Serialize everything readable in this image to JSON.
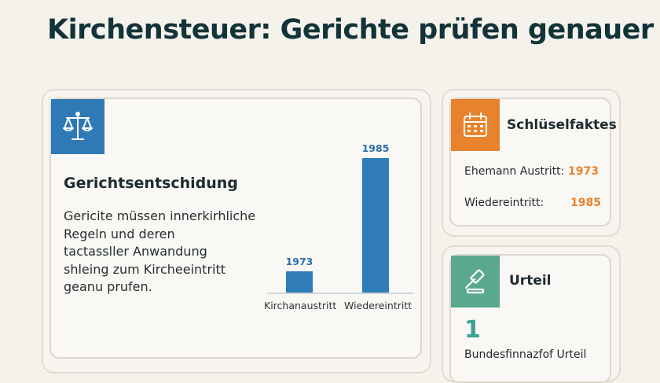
{
  "header": {
    "title": "Kirchensteuer: Gerichte prüfen genauer"
  },
  "decision_card": {
    "icon": "scale-icon",
    "heading": "Gerichtsentschidung",
    "text_lines": [
      "Gericite müssen innerkirhliche",
      "Regeln und deren",
      "tactassller Anwandung",
      "shleing zum Kircheeintritt",
      "geanu prufen."
    ]
  },
  "chart_data": {
    "type": "bar",
    "categories": [
      "Kirchanaustritt",
      "Wiedereintritt"
    ],
    "values": [
      1973,
      1985
    ],
    "value_labels": [
      "1973",
      "1985"
    ],
    "bar_fill_fraction": [
      0.16,
      1.0
    ],
    "title": "",
    "xlabel": "",
    "ylabel": "",
    "grid": false,
    "colors": {
      "bar": "#2f7cb9",
      "label": "#2a6fa8"
    }
  },
  "facts_card": {
    "icon": "calendar-icon",
    "heading": "Schlüselfaktes",
    "rows": [
      {
        "label": "Ehemann Austritt:",
        "value": "1973"
      },
      {
        "label": "Wiedereintritt:",
        "value": "1985"
      }
    ]
  },
  "verdict_card": {
    "icon": "gavel-icon",
    "heading": "Urteil",
    "number": "1",
    "label": "Bundesfinnazfof Urteil"
  },
  "colors": {
    "background": "#f5f2ec",
    "title": "#123338",
    "blue": "#2f79b6",
    "orange": "#e9822c",
    "green": "#5aa890",
    "teal_number": "#3aa08f"
  }
}
